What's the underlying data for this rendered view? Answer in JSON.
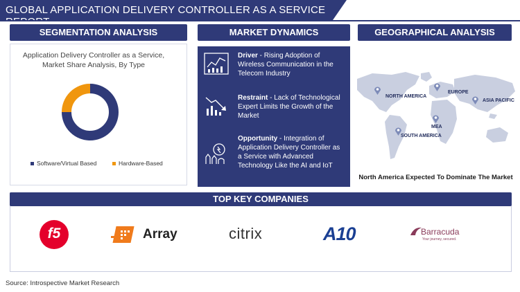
{
  "title": "GLOBAL APPLICATION DELIVERY CONTROLLER AS A SERVICE REPORT",
  "sections": {
    "segmentation": "SEGMENTATION ANALYSIS",
    "dynamics": "MARKET DYNAMICS",
    "geographical": "GEOGRAPHICAL ANALYSIS",
    "companies": "TOP KEY COMPANIES"
  },
  "segmentation": {
    "subtitle_line1": "Application Delivery Controller as a Service,",
    "subtitle_line2": "Market Share Analysis, By Type",
    "legend": [
      {
        "label": "Software/Virtual Based",
        "color": "#2f3a78"
      },
      {
        "label": "Hardware-Based",
        "color": "#f0960e"
      }
    ]
  },
  "chart_data": {
    "type": "pie",
    "variant": "donut",
    "categories": [
      "Software/Virtual Based",
      "Hardware-Based"
    ],
    "values": [
      75,
      25
    ],
    "colors": [
      "#2f3a78",
      "#f0960e"
    ],
    "legend_position": "bottom"
  },
  "dynamics": {
    "driver_label": "Driver",
    "driver_text": " - Rising Adoption of Wireless Communication in the Telecom Industry",
    "restraint_label": "Restraint",
    "restraint_text": " - Lack of Technological Expert Limits the Growth of the Market",
    "opportunity_label": "Opportunity",
    "opportunity_text": " - Integration of Application Delivery Controller as a Service with Advanced Technology Like the AI and IoT"
  },
  "geo": {
    "regions": [
      "NORTH AMERICA",
      "EUROPE",
      "ASIA PACIFIC",
      "MEA",
      "SOUTH AMERICA"
    ],
    "caption": "North America Expected To Dominate The Market"
  },
  "companies": {
    "f5": "f5",
    "array": "Array",
    "citrix": "citrix",
    "a10": "A10",
    "barracuda": "Barracuda",
    "barracuda_tagline": "Your journey, secured."
  },
  "source": "Source: Introspective Market Research"
}
